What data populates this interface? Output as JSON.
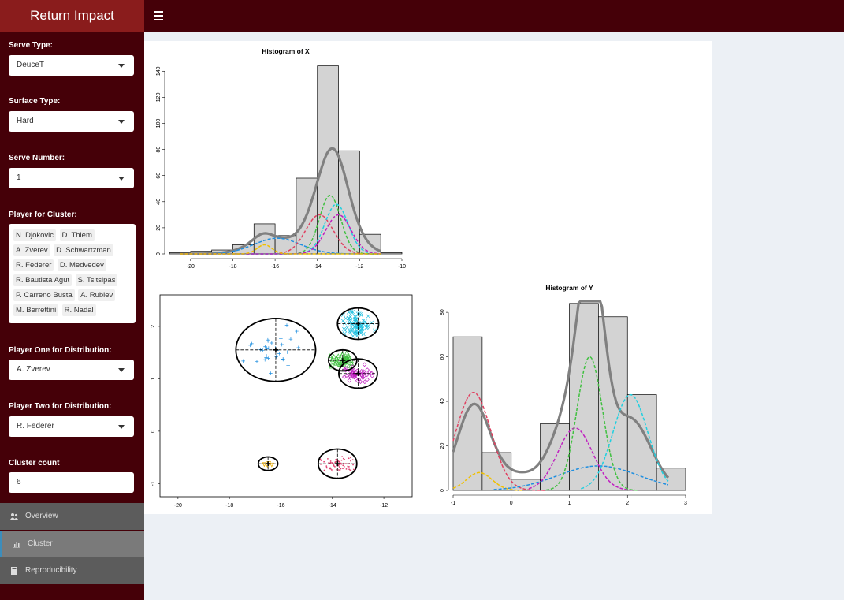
{
  "app": {
    "title": "Return Impact"
  },
  "sidebar": {
    "serve_type": {
      "label": "Serve Type:",
      "value": "DeuceT"
    },
    "surface_type": {
      "label": "Surface Type:",
      "value": "Hard"
    },
    "serve_number": {
      "label": "Serve Number:",
      "value": "1"
    },
    "player_cluster": {
      "label": "Player for Cluster:",
      "chips": [
        "N. Djokovic",
        "D. Thiem",
        "A. Zverev",
        "D. Schwartzman",
        "R. Federer",
        "D. Medvedev",
        "R. Bautista Agut",
        "S. Tsitsipas",
        "P. Carreno Busta",
        "A. Rublev",
        "M. Berrettini",
        "R. Nadal"
      ]
    },
    "player_one": {
      "label": "Player One for Distribution:",
      "value": "A. Zverev"
    },
    "player_two": {
      "label": "Player Two for Distribution:",
      "value": "R. Federer"
    },
    "cluster_count": {
      "label": "Cluster count",
      "value": "6"
    },
    "menu": [
      {
        "label": "Overview",
        "icon": "users-icon"
      },
      {
        "label": "Cluster",
        "icon": "bar-chart-icon"
      },
      {
        "label": "Reproducibility",
        "icon": "book-icon"
      }
    ]
  },
  "chart_data": [
    {
      "type": "bar",
      "title": "Histogram of X",
      "xlabel": "",
      "ylabel": "",
      "bin_edges": [
        -21,
        -20,
        -19,
        -18,
        -17,
        -16,
        -15,
        -14,
        -13,
        -12,
        -11,
        -10
      ],
      "values": [
        1,
        2,
        3,
        7,
        23,
        14,
        58,
        144,
        79,
        15,
        1
      ],
      "xticks": [
        -20,
        -18,
        -16,
        -14,
        -12,
        -10
      ],
      "yticks": [
        0,
        20,
        40,
        60,
        80,
        100,
        120,
        140
      ],
      "xlim": [
        -21,
        -10
      ],
      "ylim": [
        0,
        145
      ],
      "density_colors": [
        "#808080",
        "#1f8fe0",
        "#e04060",
        "#40c040",
        "#20d0e0",
        "#c020c0",
        "#f0c000"
      ]
    },
    {
      "type": "scatter",
      "title": "",
      "xlabel": "",
      "ylabel": "",
      "xticks": [
        -20,
        -18,
        -16,
        -14,
        -12
      ],
      "yticks": [
        -1,
        0,
        1,
        2
      ],
      "xlim": [
        -20.7,
        -10.9
      ],
      "ylim": [
        -1.25,
        2.6
      ],
      "clusters": [
        {
          "color": "#1f8fe0",
          "symbol": "+",
          "center": [
            -16.2,
            1.55
          ],
          "radius": [
            1.55,
            0.6
          ]
        },
        {
          "color": "#20c0e0",
          "symbol": "x",
          "center": [
            -13.0,
            2.05
          ],
          "radius": [
            0.8,
            0.3
          ]
        },
        {
          "color": "#40c040",
          "symbol": "triangle",
          "center": [
            -13.6,
            1.35
          ],
          "radius": [
            0.55,
            0.2
          ]
        },
        {
          "color": "#c020c0",
          "symbol": "diamond",
          "center": [
            -13.0,
            1.1
          ],
          "radius": [
            0.75,
            0.28
          ]
        },
        {
          "color": "#f0b000",
          "symbol": "triangle-down",
          "center": [
            -16.5,
            -0.62
          ],
          "radius": [
            0.38,
            0.13
          ]
        },
        {
          "color": "#e04070",
          "symbol": "dot",
          "center": [
            -13.8,
            -0.62
          ],
          "radius": [
            0.75,
            0.28
          ]
        }
      ]
    },
    {
      "type": "bar",
      "title": "Histogram of Y",
      "xlabel": "",
      "ylabel": "",
      "bin_edges": [
        -1,
        -0.5,
        0,
        0.5,
        1,
        1.5,
        2,
        2.5,
        3
      ],
      "values": [
        69,
        17,
        5,
        30,
        84,
        78,
        43,
        10
      ],
      "xticks": [
        -1,
        0,
        1,
        2,
        3
      ],
      "yticks": [
        0,
        20,
        40,
        60,
        80
      ],
      "xlim": [
        -1,
        3
      ],
      "ylim": [
        0,
        85
      ]
    }
  ]
}
